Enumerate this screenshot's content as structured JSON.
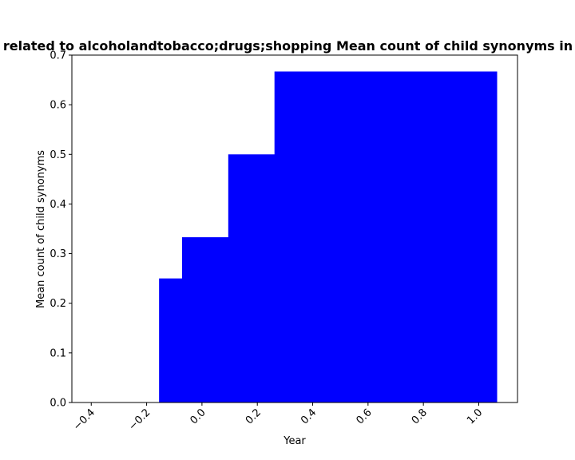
{
  "chart_data": {
    "type": "area",
    "title": "related to alcoholandtobacco;drugs;shopping Mean count of child synonyms in p",
    "xlabel": "Year",
    "ylabel": "Mean count of child synonyms",
    "xlim": [
      -0.47,
      1.14
    ],
    "ylim": [
      0,
      0.7
    ],
    "x_ticks": [
      -0.4,
      -0.2,
      0.0,
      0.2,
      0.4,
      0.6,
      0.8,
      1.0
    ],
    "x_tick_labels": [
      "−0.4",
      "−0.2",
      "0.0",
      "0.2",
      "0.4",
      "0.6",
      "0.8",
      "1.0"
    ],
    "y_ticks": [
      0.0,
      0.1,
      0.2,
      0.3,
      0.4,
      0.5,
      0.6,
      0.7
    ],
    "y_tick_labels": [
      "0.0",
      "0.1",
      "0.2",
      "0.3",
      "0.4",
      "0.5",
      "0.6",
      "0.7"
    ],
    "grid": false,
    "color": "#0000ff",
    "steps": [
      {
        "x_start": -0.155,
        "x_end": -0.072,
        "y": 0.25
      },
      {
        "x_start": -0.072,
        "x_end": 0.095,
        "y": 0.333
      },
      {
        "x_start": 0.095,
        "x_end": 0.262,
        "y": 0.5
      },
      {
        "x_start": 0.262,
        "x_end": 1.065,
        "y": 0.667
      }
    ]
  }
}
